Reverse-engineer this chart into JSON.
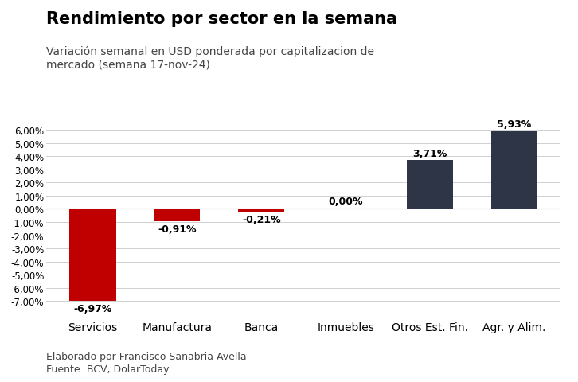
{
  "title": "Rendimiento por sector en la semana",
  "subtitle": "Variación semanal en USD ponderada por capitalizacion de\nmercado (semana 17-nov-24)",
  "categories": [
    "Servicios",
    "Manufactura",
    "Banca",
    "Inmuebles",
    "Otros Est. Fin.",
    "Agr. y Alim."
  ],
  "values": [
    -6.97,
    -0.91,
    -0.21,
    0.0,
    3.71,
    5.93
  ],
  "labels": [
    "-6,97%",
    "-0,91%",
    "-0,21%",
    "0,00%",
    "3,71%",
    "5,93%"
  ],
  "bar_colors": [
    "#c00000",
    "#c00000",
    "#c00000",
    "#2e3547",
    "#2e3547",
    "#2e3547"
  ],
  "ylim": [
    -8.2,
    7.2
  ],
  "yticks": [
    -7,
    -6,
    -5,
    -4,
    -3,
    -2,
    -1,
    0,
    1,
    2,
    3,
    4,
    5,
    6
  ],
  "background_color": "#ffffff",
  "grid_color": "#d0d0d0",
  "footnote1": "Elaborado por Francisco Sanabria Avella",
  "footnote2": "Fuente: BCV, DolarToday",
  "title_fontsize": 15,
  "subtitle_fontsize": 10,
  "tick_fontsize": 8.5,
  "xlabel_fontsize": 10,
  "label_fontsize": 9,
  "footnote_fontsize": 9
}
